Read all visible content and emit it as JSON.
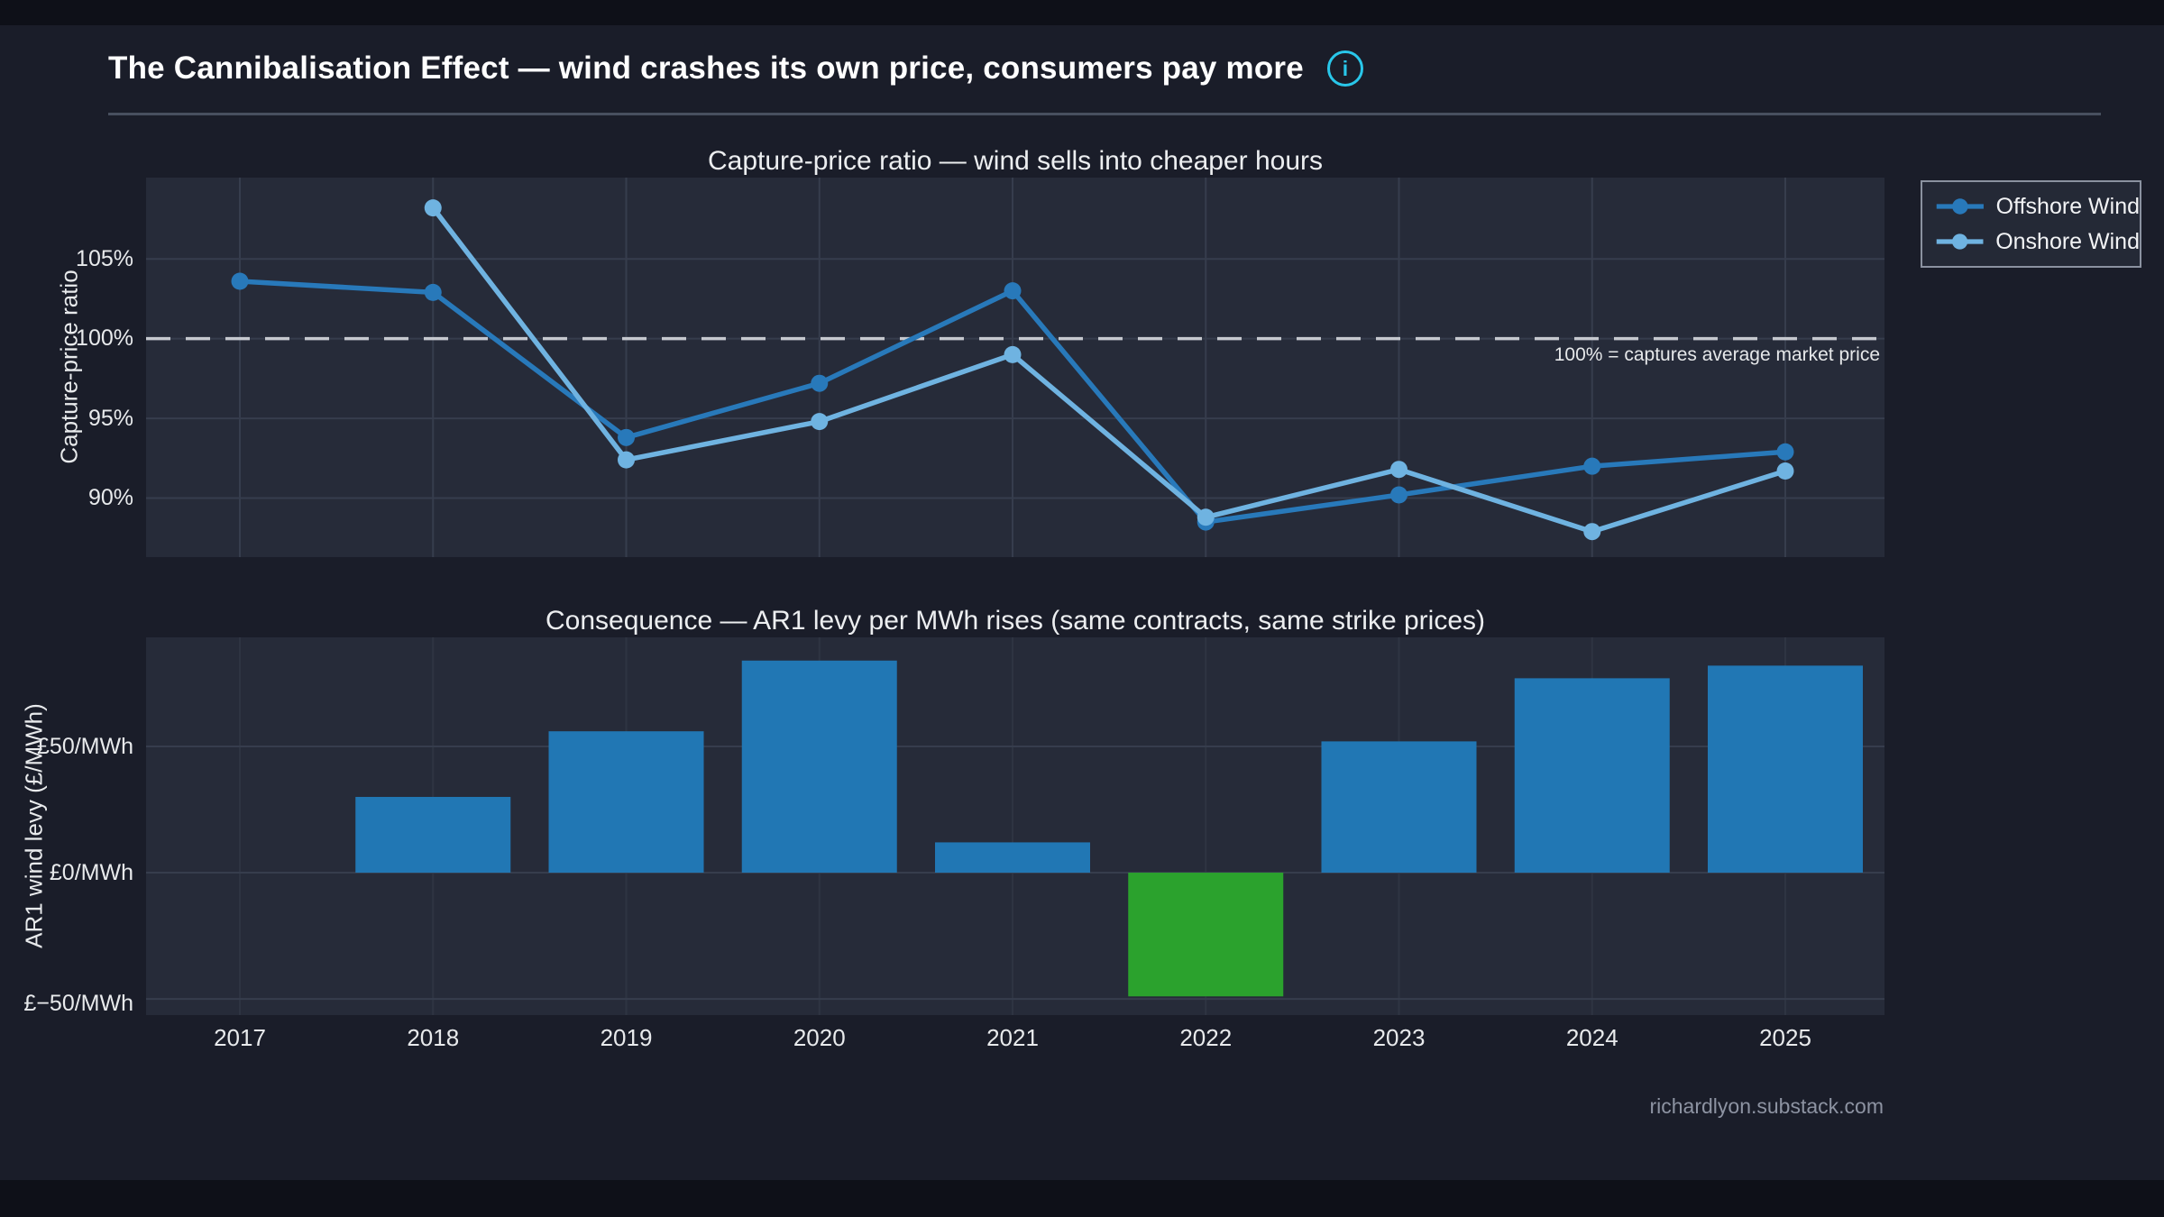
{
  "page": {
    "title": "The Cannibalisation Effect — wind crashes its own price, consumers pay more",
    "info_icon_glyph": "i",
    "footer": "richardlyon.substack.com"
  },
  "colors": {
    "background": "#1a1d29",
    "letterbox": "#0e1018",
    "plot_background": "#262b39",
    "grid": "#363d4d",
    "reference_line": "#c6c9cf",
    "accent_cyan": "#29c7ea",
    "offshore_blue": "#2879ba",
    "onshore_blue": "#6fb3e1",
    "bar_blue": "#2177b4",
    "bar_green": "#2ba22d",
    "text_primary": "#ffffff",
    "text_muted": "#8d93a2"
  },
  "chart_data": [
    {
      "type": "line",
      "title": "Capture-price ratio — wind sells into cheaper hours",
      "ylabel": "Capture-price ratio",
      "x": [
        2017,
        2018,
        2019,
        2020,
        2021,
        2022,
        2023,
        2024,
        2025
      ],
      "series": [
        {
          "name": "Offshore Wind",
          "color": "#2879ba",
          "values": [
            103.6,
            102.9,
            93.8,
            97.2,
            103.0,
            88.5,
            90.2,
            92.0,
            92.9
          ]
        },
        {
          "name": "Onshore Wind",
          "color": "#6fb3e1",
          "values": [
            null,
            108.2,
            92.4,
            94.8,
            99.0,
            88.8,
            91.8,
            87.9,
            91.7
          ]
        }
      ],
      "yticks": [
        "105%",
        "100%",
        "95%",
        "90%"
      ],
      "ytick_values": [
        105,
        100,
        95,
        90
      ],
      "ylim": [
        86.3,
        110.1
      ],
      "grid": true,
      "legend_position": "outside-right-top",
      "reference_line": {
        "value": 100,
        "label": "100% = captures average market price"
      }
    },
    {
      "type": "bar",
      "title": "Consequence — AR1 levy per MWh rises (same contracts, same strike prices)",
      "ylabel": "AR1 wind levy (£/MWh)",
      "categories": [
        "2017",
        "2018",
        "2019",
        "2020",
        "2021",
        "2022",
        "2023",
        "2024",
        "2025"
      ],
      "values": [
        0,
        30,
        56,
        84,
        12,
        -49,
        52,
        77,
        82
      ],
      "colors": [
        "#2177b4",
        "#2177b4",
        "#2177b4",
        "#2177b4",
        "#2177b4",
        "#2ba22d",
        "#2177b4",
        "#2177b4",
        "#2177b4"
      ],
      "yticks": [
        "£50/MWh",
        "£0/MWh",
        "£−50/MWh"
      ],
      "ytick_values": [
        50,
        0,
        -50
      ],
      "ylim": [
        -56.4,
        93.2
      ],
      "grid": true
    }
  ]
}
